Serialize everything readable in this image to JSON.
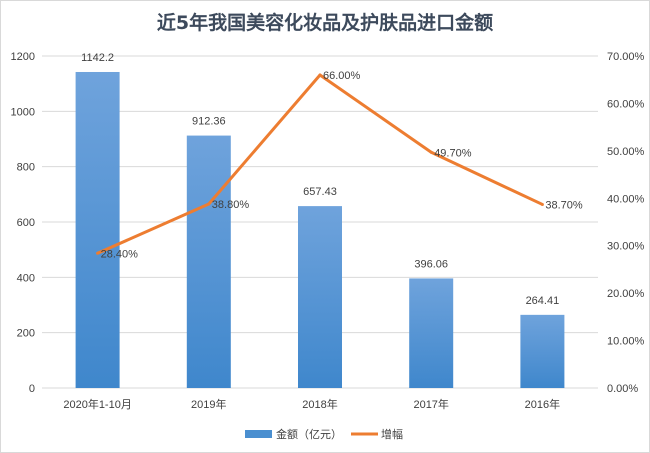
{
  "chart_data": {
    "type": "bar+line",
    "title": "近5年我国美容化妆品及护肤品进口金额",
    "categories": [
      "2020年1-10月",
      "2019年",
      "2018年",
      "2017年",
      "2016年"
    ],
    "series": [
      {
        "name": "金额（亿元）",
        "type": "bar",
        "axis": "left",
        "values": [
          1142.2,
          912.36,
          657.43,
          396.06,
          264.41
        ],
        "labels": [
          "1142.2",
          "912.36",
          "657.43",
          "396.06",
          "264.41"
        ],
        "color": "#5b9bd5"
      },
      {
        "name": "增幅",
        "type": "line",
        "axis": "right",
        "values": [
          28.4,
          38.8,
          66.0,
          49.7,
          38.7
        ],
        "labels": [
          "28.40%",
          "38.80%",
          "66.00%",
          "49.70%",
          "38.70%"
        ],
        "color": "#ed7d31"
      }
    ],
    "y_left": {
      "range": [
        0,
        1200
      ],
      "ticks": [
        "0",
        "200",
        "400",
        "600",
        "800",
        "1000",
        "1200"
      ]
    },
    "y_right": {
      "range": [
        0,
        70
      ],
      "ticks": [
        "0.00%",
        "10.00%",
        "20.00%",
        "30.00%",
        "40.00%",
        "50.00%",
        "60.00%",
        "70.00%"
      ]
    },
    "grid": true,
    "legend": "bottom"
  }
}
